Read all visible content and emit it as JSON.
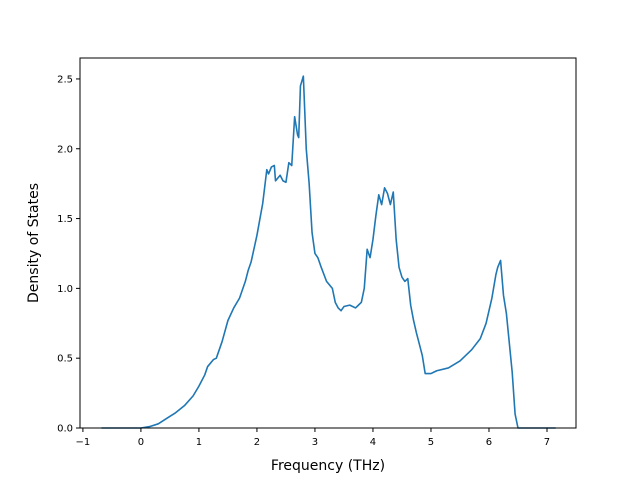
{
  "chart_data": {
    "type": "line",
    "xlabel": "Frequency (THz)",
    "ylabel": "Density of States",
    "xlim": [
      -1.05,
      7.5
    ],
    "ylim": [
      0.0,
      2.65
    ],
    "xticks": [
      -1,
      0,
      1,
      2,
      3,
      4,
      5,
      6,
      7
    ],
    "xtick_labels": [
      "−1",
      "0",
      "1",
      "2",
      "3",
      "4",
      "5",
      "6",
      "7"
    ],
    "yticks": [
      0.0,
      0.5,
      1.0,
      1.5,
      2.0,
      2.5
    ],
    "ytick_labels": [
      "0.0",
      "0.5",
      "1.0",
      "1.5",
      "2.0",
      "2.5"
    ],
    "grid": false,
    "series": [
      {
        "color": "#1f77b4",
        "x": [
          -0.68,
          -0.3,
          0.0,
          0.15,
          0.3,
          0.45,
          0.6,
          0.75,
          0.9,
          1.0,
          1.1,
          1.15,
          1.25,
          1.3,
          1.4,
          1.5,
          1.6,
          1.7,
          1.8,
          1.85,
          1.9,
          2.0,
          2.1,
          2.17,
          2.2,
          2.25,
          2.3,
          2.32,
          2.4,
          2.45,
          2.5,
          2.55,
          2.6,
          2.65,
          2.7,
          2.72,
          2.75,
          2.8,
          2.85,
          2.9,
          2.95,
          3.0,
          3.05,
          3.1,
          3.2,
          3.3,
          3.35,
          3.4,
          3.45,
          3.5,
          3.6,
          3.7,
          3.75,
          3.8,
          3.85,
          3.9,
          3.95,
          4.0,
          4.05,
          4.1,
          4.15,
          4.2,
          4.25,
          4.3,
          4.35,
          4.4,
          4.45,
          4.5,
          4.55,
          4.6,
          4.65,
          4.7,
          4.75,
          4.8,
          4.85,
          4.9,
          5.0,
          5.05,
          5.1,
          5.3,
          5.5,
          5.7,
          5.85,
          5.95,
          6.05,
          6.12,
          6.15,
          6.2,
          6.25,
          6.3,
          6.4,
          6.45,
          6.5,
          6.52,
          6.55,
          7.15
        ],
        "y": [
          0.0,
          0.0,
          0.0,
          0.01,
          0.03,
          0.07,
          0.11,
          0.16,
          0.23,
          0.3,
          0.38,
          0.44,
          0.49,
          0.5,
          0.62,
          0.77,
          0.86,
          0.93,
          1.05,
          1.13,
          1.19,
          1.38,
          1.61,
          1.85,
          1.82,
          1.87,
          1.88,
          1.77,
          1.81,
          1.77,
          1.76,
          1.9,
          1.88,
          2.23,
          2.1,
          2.08,
          2.45,
          2.52,
          2.0,
          1.75,
          1.4,
          1.25,
          1.22,
          1.16,
          1.05,
          1.0,
          0.9,
          0.86,
          0.84,
          0.87,
          0.88,
          0.86,
          0.88,
          0.9,
          1.0,
          1.28,
          1.22,
          1.35,
          1.52,
          1.67,
          1.6,
          1.72,
          1.68,
          1.6,
          1.69,
          1.35,
          1.15,
          1.08,
          1.05,
          1.07,
          0.88,
          0.77,
          0.68,
          0.6,
          0.52,
          0.39,
          0.39,
          0.4,
          0.41,
          0.43,
          0.48,
          0.56,
          0.64,
          0.75,
          0.93,
          1.1,
          1.15,
          1.2,
          0.95,
          0.82,
          0.4,
          0.1,
          0.0,
          0.0,
          0.0,
          0.0
        ]
      }
    ]
  }
}
